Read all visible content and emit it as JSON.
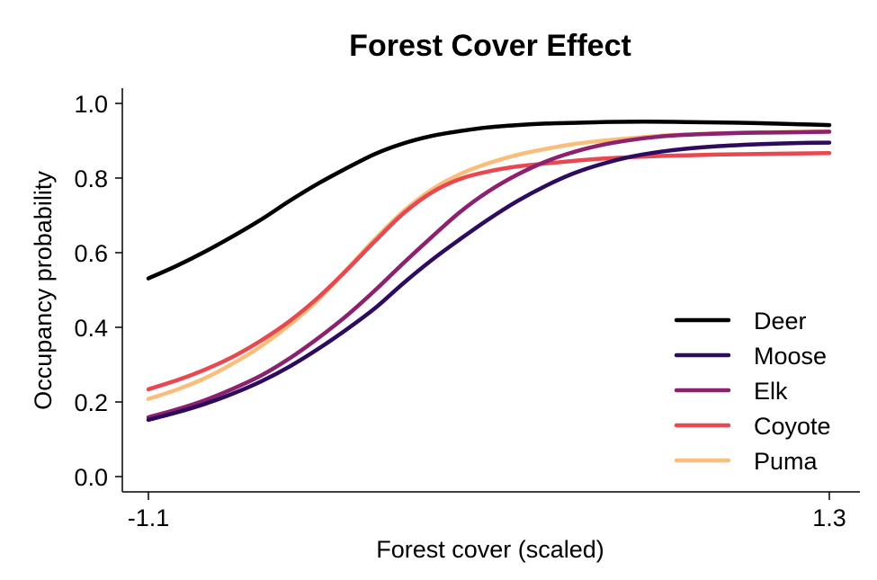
{
  "chart_data": {
    "type": "line",
    "title": "Forest Cover Effect",
    "xlabel": "Forest cover (scaled)",
    "ylabel": "Occupancy probability",
    "xlim": [
      -1.1,
      1.3
    ],
    "ylim": [
      0.0,
      1.0
    ],
    "x_ticks": [
      -1.1,
      1.3
    ],
    "x_tick_labels": [
      "-1.1",
      "1.3"
    ],
    "y_ticks": [
      0.0,
      0.2,
      0.4,
      0.6,
      0.8,
      1.0
    ],
    "y_tick_labels": [
      "0.0",
      "0.2",
      "0.4",
      "0.6",
      "0.8",
      "1.0"
    ],
    "grid": false,
    "legend_position": "bottom-right",
    "x": [
      -1.1,
      -1.0,
      -0.9,
      -0.8,
      -0.7,
      -0.6,
      -0.5,
      -0.4,
      -0.3,
      -0.2,
      -0.1,
      0.0,
      0.1,
      0.2,
      0.3,
      0.4,
      0.5,
      0.6,
      0.7,
      0.8,
      0.9,
      1.0,
      1.1,
      1.2,
      1.3
    ],
    "series": [
      {
        "name": "Deer",
        "color": "#000000",
        "values": [
          0.531,
          0.565,
          0.603,
          0.645,
          0.69,
          0.74,
          0.786,
          0.827,
          0.865,
          0.893,
          0.913,
          0.926,
          0.936,
          0.942,
          0.946,
          0.948,
          0.95,
          0.951,
          0.951,
          0.95,
          0.949,
          0.948,
          0.946,
          0.944,
          0.942
        ]
      },
      {
        "name": "Moose",
        "color": "#2d0b5e",
        "values": [
          0.152,
          0.172,
          0.195,
          0.223,
          0.256,
          0.296,
          0.343,
          0.395,
          0.452,
          0.519,
          0.581,
          0.637,
          0.69,
          0.738,
          0.779,
          0.813,
          0.838,
          0.857,
          0.87,
          0.879,
          0.885,
          0.889,
          0.892,
          0.894,
          0.895
        ]
      },
      {
        "name": "Elk",
        "color": "#8b216f",
        "values": [
          0.159,
          0.18,
          0.205,
          0.236,
          0.272,
          0.318,
          0.372,
          0.432,
          0.5,
          0.573,
          0.643,
          0.71,
          0.765,
          0.809,
          0.844,
          0.87,
          0.889,
          0.902,
          0.911,
          0.916,
          0.919,
          0.921,
          0.922,
          0.923,
          0.924
        ]
      },
      {
        "name": "Coyote",
        "color": "#e8484f",
        "values": [
          0.234,
          0.258,
          0.287,
          0.322,
          0.366,
          0.418,
          0.481,
          0.554,
          0.632,
          0.706,
          0.762,
          0.798,
          0.818,
          0.831,
          0.839,
          0.846,
          0.852,
          0.856,
          0.859,
          0.861,
          0.863,
          0.864,
          0.865,
          0.866,
          0.867
        ]
      },
      {
        "name": "Puma",
        "color": "#fbbd7a",
        "values": [
          0.208,
          0.233,
          0.264,
          0.304,
          0.351,
          0.408,
          0.475,
          0.556,
          0.638,
          0.712,
          0.77,
          0.811,
          0.84,
          0.862,
          0.878,
          0.891,
          0.9,
          0.907,
          0.913,
          0.917,
          0.92,
          0.922,
          0.923,
          0.924,
          0.925
        ]
      }
    ]
  }
}
